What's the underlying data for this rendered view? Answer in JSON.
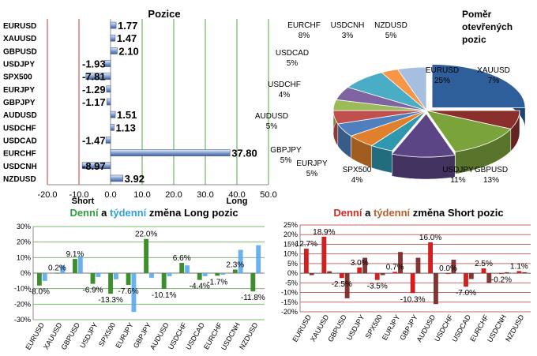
{
  "positions_chart": {
    "title": "Pozice",
    "short_label": "Short",
    "long_label": "Long",
    "xlim": [
      -20,
      50
    ],
    "ticks": [
      "-20.0",
      "-10.0",
      "0.0",
      "10.0",
      "20.0",
      "30.0",
      "40.0",
      "50.0"
    ],
    "categories": [
      "EURUSD",
      "XAUUSD",
      "GBPUSD",
      "USDJPY",
      "SPX500",
      "EURJPY",
      "GBPJPY",
      "AUDUSD",
      "USDCHF",
      "USDCAD",
      "EURCHF",
      "USDCNH",
      "NZDUSD"
    ],
    "values": [
      1.77,
      1.47,
      2.1,
      -1.93,
      -7.81,
      -1.29,
      -1.17,
      1.51,
      1.13,
      -1.47,
      37.8,
      -8.97,
      3.92
    ],
    "labels": [
      "1.77",
      "1.47",
      "2.10",
      "-1.93",
      "-7.81",
      "-1.29",
      "-1.17",
      "1.51",
      "1.13",
      "-1.47",
      "37.80",
      "-8.97",
      "3.92"
    ]
  },
  "pie_chart": {
    "title_lines": [
      "Poměr",
      "otevřených",
      "pozic"
    ],
    "slices": [
      {
        "name": "EURUSD",
        "pct": "25%",
        "value": 25,
        "color": "#2e5f9a"
      },
      {
        "name": "XAUUSD",
        "pct": "7%",
        "value": 7,
        "color": "#8b2f2c"
      },
      {
        "name": "GBPUSD",
        "pct": "13%",
        "value": 13,
        "color": "#7aa33c"
      },
      {
        "name": "USDJPY",
        "pct": "11%",
        "value": 11,
        "color": "#5b4585"
      },
      {
        "name": "SPX500",
        "pct": "4%",
        "value": 4,
        "color": "#2f97ae"
      },
      {
        "name": "EURJPY",
        "pct": "5%",
        "value": 5,
        "color": "#e0802d"
      },
      {
        "name": "GBPJPY",
        "pct": "5%",
        "value": 5,
        "color": "#4f7fbf"
      },
      {
        "name": "AUDUSD",
        "pct": "5%",
        "value": 5,
        "color": "#c0504d"
      },
      {
        "name": "USDCHF",
        "pct": "4%",
        "value": 4,
        "color": "#9bbb59"
      },
      {
        "name": "USDCAD",
        "pct": "5%",
        "value": 5,
        "color": "#8064a2"
      },
      {
        "name": "EURCHF",
        "pct": "8%",
        "value": 8,
        "color": "#4bacc6"
      },
      {
        "name": "USDCNH",
        "pct": "3%",
        "value": 3,
        "color": "#f79646"
      },
      {
        "name": "NZDUSD",
        "pct": "5%",
        "value": 5,
        "color": "#a7bfdf"
      }
    ]
  },
  "long_chart": {
    "title_part1": "Denní",
    "title_part2": " a ",
    "title_part3": "týdenní",
    "title_part4": " změna Long pozic",
    "title_color1": "#2e9e3e",
    "title_color3": "#2fa0e0",
    "ylim": [
      -30,
      30
    ],
    "ticks": [
      "30%",
      "20%",
      "10%",
      "0%",
      "-10%",
      "-20%",
      "-30%"
    ],
    "categories": [
      "EURUSD",
      "XAUUSD",
      "GBPUSD",
      "USDJPY",
      "SPX500",
      "EURJPY",
      "GBPJPY",
      "AUDUSD",
      "USDCHF",
      "USDCAD",
      "EURCHF",
      "USDCNH",
      "NZDUSD"
    ],
    "daily": [
      -8.0,
      0.2,
      9.1,
      -6.9,
      -13.3,
      -7.6,
      22.0,
      -10.1,
      6.6,
      -4.4,
      -1.7,
      2.3,
      -11.8
    ],
    "weekly": [
      -5.0,
      5.0,
      11.0,
      -2.5,
      -4.0,
      -25.0,
      -3.0,
      -2.0,
      5.0,
      -2.0,
      -1.0,
      15.0,
      18.0
    ],
    "labels": [
      "-8.0%",
      "0.2%",
      "9.1%",
      "-6.9%",
      "-13.3%",
      "-7.6%",
      "22.0%",
      "-10.1%",
      "6.6%",
      "-4.4%",
      "-1.7%",
      "2.3%",
      "-11.8%"
    ],
    "daily_color": "#3d8f2e",
    "weekly_color": "#5aa9ec"
  },
  "short_chart": {
    "title_part1": "Denní",
    "title_part2": " a ",
    "title_part3": "týdenní",
    "title_part4": " změna Short pozic",
    "title_color1": "#d42a1f",
    "title_color3": "#b8602e",
    "ylim": [
      -20,
      25
    ],
    "ticks": [
      "25%",
      "20%",
      "15%",
      "10%",
      "5%",
      "0%",
      "-5%",
      "-10%",
      "-15%",
      "-20%"
    ],
    "categories": [
      "EURUSD",
      "XAUUSD",
      "GBPUSD",
      "USDJPY",
      "SPX500",
      "EURJPY",
      "GBPJPY",
      "AUDUSD",
      "USDCHF",
      "USDCAD",
      "EURCHF",
      "USDCNH",
      "NZDUSD"
    ],
    "daily": [
      12.7,
      18.9,
      -2.5,
      3.0,
      -3.5,
      0.7,
      -10.3,
      16.0,
      0.0,
      -7.0,
      2.5,
      -0.2,
      1.1
    ],
    "weekly": [
      -1.0,
      1.0,
      -13.0,
      8.0,
      -1.0,
      11.0,
      8.0,
      -16.0,
      7.0,
      -3.0,
      -5.0,
      0.5,
      0.5
    ],
    "labels": [
      "12.7%",
      "18.9%",
      "-2.5%",
      "3.0%",
      "-3.5%",
      "0.7%",
      "-10.3%",
      "16.0%",
      "0.0%",
      "-7.0%",
      "2.5%",
      "-0.2%",
      "1.1%"
    ],
    "daily_color": "#d21f1f",
    "weekly_color": "#7a2b2b"
  }
}
